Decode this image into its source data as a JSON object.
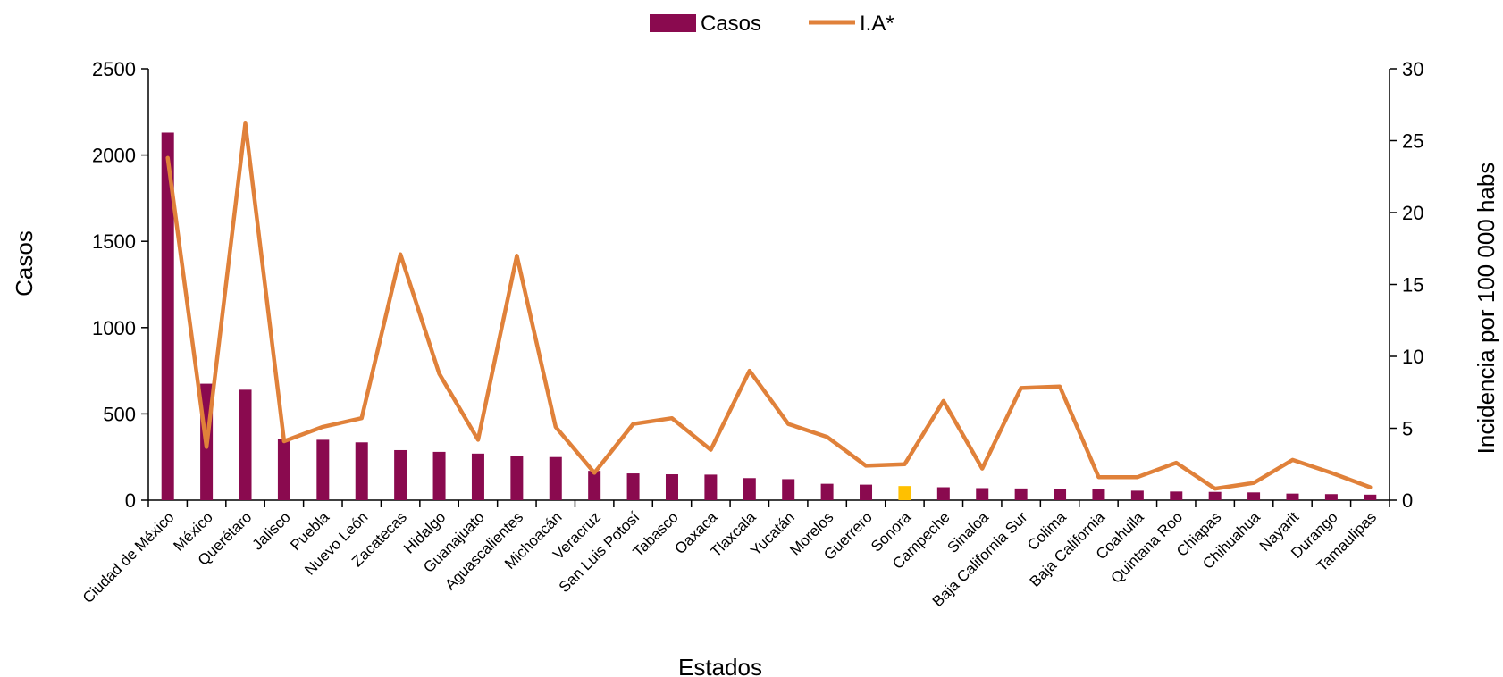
{
  "chart_data": {
    "type": "bar",
    "categories": [
      "Ciudad de México",
      "México",
      "Querétaro",
      "Jalisco",
      "Puebla",
      "Nuevo León",
      "Zacatecas",
      "Hidalgo",
      "Guanajuato",
      "Aguascalientes",
      "Michoacán",
      "Veracruz",
      "San Luis Potosí",
      "Tabasco",
      "Oaxaca",
      "Tlaxcala",
      "Yucatán",
      "Morelos",
      "Guerrero",
      "Sonora",
      "Campeche",
      "Sinaloa",
      "Baja California Sur",
      "Colima",
      "Baja California",
      "Coahuila",
      "Quintana Roo",
      "Chiapas",
      "Chihuahua",
      "Nayarit",
      "Durango",
      "Tamaulipas"
    ],
    "series": [
      {
        "name": "Casos",
        "type": "bar",
        "axis": "left",
        "color": "#8a0a4f",
        "values": [
          2130,
          675,
          640,
          355,
          350,
          335,
          290,
          280,
          270,
          255,
          250,
          170,
          155,
          150,
          148,
          128,
          122,
          95,
          90,
          82,
          75,
          70,
          68,
          65,
          62,
          55,
          50,
          48,
          45,
          38,
          35,
          32
        ]
      },
      {
        "name": "I.A*",
        "type": "line",
        "axis": "right",
        "color": "#e0813a",
        "values": [
          23.8,
          3.7,
          26.2,
          4.1,
          5.1,
          5.7,
          17.1,
          8.8,
          4.2,
          17.0,
          5.1,
          1.9,
          5.3,
          5.7,
          3.5,
          9.0,
          5.3,
          4.4,
          2.4,
          2.5,
          6.9,
          2.2,
          7.8,
          7.9,
          1.6,
          1.6,
          2.6,
          0.8,
          1.2,
          2.8,
          1.9,
          0.9
        ]
      }
    ],
    "highlight": {
      "category": "Sonora",
      "color": "#ffc000"
    },
    "xlabel": "Estados",
    "ylabel": "Casos",
    "y2label": "Incidencia por 100 000 habs",
    "ylim": [
      0,
      2500
    ],
    "y2lim": [
      0,
      30
    ],
    "yticks": [
      "0",
      "500",
      "1000",
      "1500",
      "2000",
      "2500"
    ],
    "y2ticks": [
      "0",
      "5",
      "10",
      "15",
      "20",
      "25",
      "30"
    ],
    "legend": {
      "position": "top",
      "items": [
        "Casos",
        "I.A*"
      ]
    },
    "grid": false
  }
}
